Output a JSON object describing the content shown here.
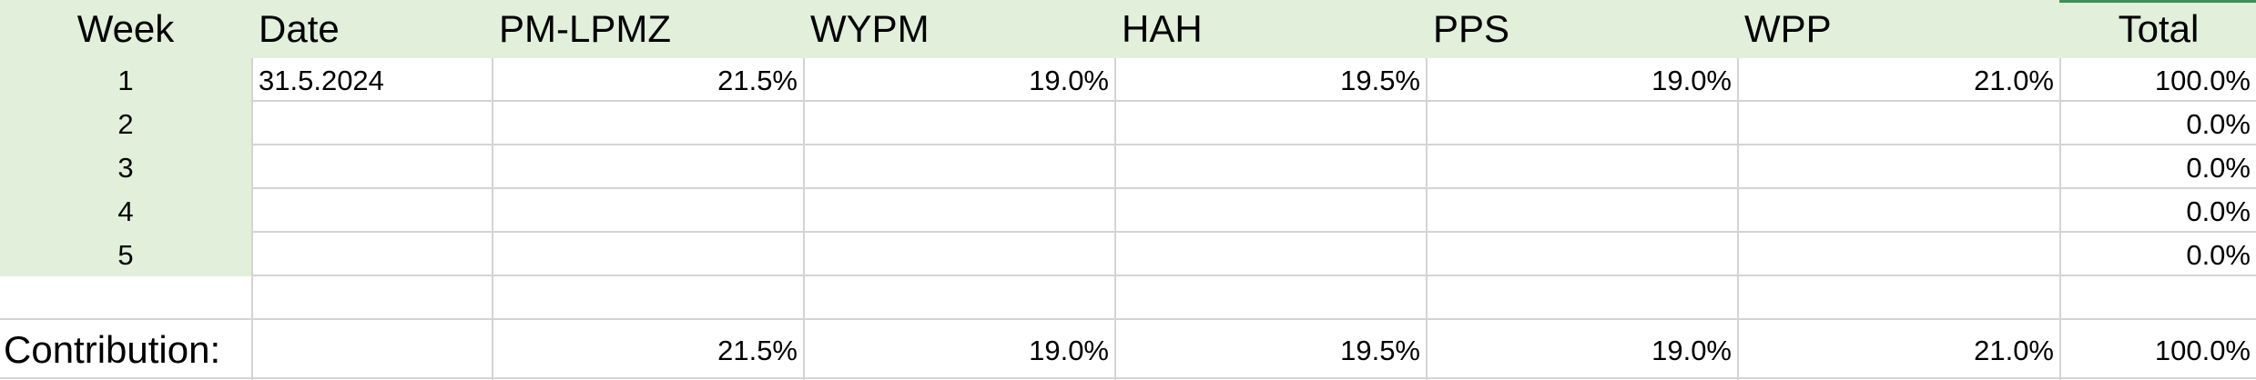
{
  "colors": {
    "header_fill": "#e2efda",
    "grid_line": "#d4d4d4"
  },
  "header": {
    "week": "Week",
    "date": "Date",
    "c1": "PM-LPMZ",
    "c2": "WYPM",
    "c3": "HAH",
    "c4": "PPS",
    "c5": "WPP",
    "total": "Total"
  },
  "rows": [
    {
      "week": "1",
      "date": "31.5.2024",
      "c1": "21.5%",
      "c2": "19.0%",
      "c3": "19.5%",
      "c4": "19.0%",
      "c5": "21.0%",
      "total": "100.0%"
    },
    {
      "week": "2",
      "date": "",
      "c1": "",
      "c2": "",
      "c3": "",
      "c4": "",
      "c5": "",
      "total": "0.0%"
    },
    {
      "week": "3",
      "date": "",
      "c1": "",
      "c2": "",
      "c3": "",
      "c4": "",
      "c5": "",
      "total": "0.0%"
    },
    {
      "week": "4",
      "date": "",
      "c1": "",
      "c2": "",
      "c3": "",
      "c4": "",
      "c5": "",
      "total": "0.0%"
    },
    {
      "week": "5",
      "date": "",
      "c1": "",
      "c2": "",
      "c3": "",
      "c4": "",
      "c5": "",
      "total": "0.0%"
    }
  ],
  "contribution": {
    "label": "Contribution:",
    "c1": "21.5%",
    "c2": "19.0%",
    "c3": "19.5%",
    "c4": "19.0%",
    "c5": "21.0%",
    "total": "100.0%"
  }
}
